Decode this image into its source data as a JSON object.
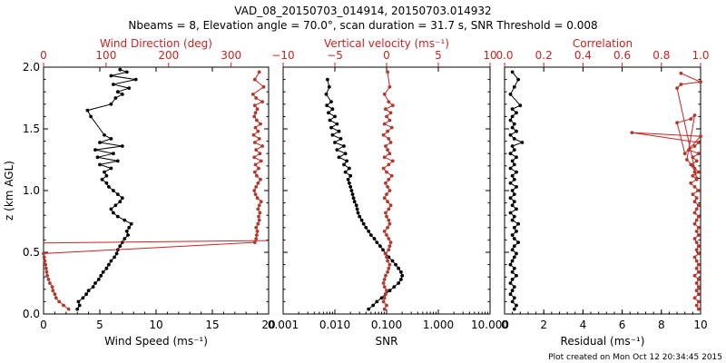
{
  "title_line1": "VAD_08_20150703_014914, 20150703.014932",
  "title_line2": "Nbeams = 8, Elevation angle = 70.0°, scan duration = 31.7 s, SNR Threshold = 0.008",
  "footer": "Plot created on Mon Oct 12 20:34:45 2015",
  "colors": {
    "black_series": "#000000",
    "red_series": "#b03a2e",
    "red_axis": "#cc2222"
  },
  "chart_data": [
    {
      "type": "scatter",
      "panel": "left",
      "ylabel": "z (km AGL)",
      "ylim": [
        0,
        2
      ],
      "yticks": [
        "0.0",
        "0.5",
        "1.0",
        "1.5",
        "2.0"
      ],
      "xlabel": "Wind Speed (ms⁻¹)",
      "xlim": [
        0,
        20
      ],
      "xticks": [
        "0",
        "5",
        "10",
        "15",
        "20"
      ],
      "top_label": "Wind Direction (deg)",
      "top_xlim": [
        0,
        360
      ],
      "top_ticks": [
        "0",
        "100",
        "200",
        "300"
      ],
      "top_tick_values": [
        0,
        100,
        200,
        300
      ],
      "series": [
        {
          "axis": "bottom",
          "color": "black",
          "connected": true,
          "x": [
            3.0,
            3.2,
            3.1,
            3.5,
            3.8,
            4.0,
            4.4,
            4.6,
            4.9,
            5.1,
            5.3,
            5.6,
            5.8,
            6.0,
            6.3,
            6.5,
            6.6,
            6.8,
            7.0,
            7.2,
            7.5,
            7.4,
            7.6,
            7.8,
            7.2,
            6.6,
            6.2,
            6.0,
            6.4,
            6.8,
            7.0,
            6.6,
            6.2,
            5.8,
            5.6,
            5.2,
            5.6,
            5.4,
            6.0,
            5.0,
            6.6,
            4.8,
            6.2,
            4.6,
            7.0,
            5.0,
            6.0,
            5.4,
            4.2,
            3.9,
            6.0,
            6.4,
            7.0,
            6.6,
            7.6,
            6.2,
            8.2,
            6.0,
            7.4,
            6.8
          ],
          "y": [
            0.04,
            0.07,
            0.1,
            0.13,
            0.16,
            0.19,
            0.22,
            0.25,
            0.28,
            0.31,
            0.34,
            0.37,
            0.4,
            0.43,
            0.46,
            0.49,
            0.52,
            0.55,
            0.58,
            0.61,
            0.64,
            0.67,
            0.7,
            0.73,
            0.76,
            0.79,
            0.82,
            0.85,
            0.88,
            0.91,
            0.94,
            0.97,
            1.0,
            1.03,
            1.06,
            1.09,
            1.12,
            1.15,
            1.18,
            1.21,
            1.24,
            1.27,
            1.3,
            1.33,
            1.36,
            1.39,
            1.42,
            1.45,
            1.6,
            1.65,
            1.7,
            1.75,
            1.78,
            1.8,
            1.83,
            1.86,
            1.9,
            1.93,
            1.96,
            1.98
          ]
        },
        {
          "axis": "top",
          "color": "red",
          "connected": true,
          "x": [
            40,
            32,
            25,
            20,
            18,
            15,
            14,
            10,
            8,
            6,
            5,
            4,
            3,
            2,
            1,
            0,
            338,
            340,
            341,
            342,
            340,
            343,
            345,
            344,
            346,
            343,
            345,
            348,
            342,
            339,
            337,
            340,
            343,
            347,
            341,
            338,
            344,
            339,
            348,
            337,
            346,
            340,
            350,
            338,
            345,
            336,
            343,
            339,
            347,
            341,
            337,
            339,
            342,
            338,
            350,
            340,
            335,
            352,
            338,
            345
          ],
          "y": [
            0.04,
            0.07,
            0.1,
            0.13,
            0.16,
            0.19,
            0.22,
            0.25,
            0.28,
            0.31,
            0.34,
            0.37,
            0.4,
            0.43,
            0.46,
            0.49,
            0.58,
            0.61,
            0.64,
            0.67,
            0.7,
            0.73,
            0.76,
            0.79,
            0.82,
            0.85,
            0.88,
            0.91,
            0.94,
            0.97,
            1.0,
            1.03,
            1.06,
            1.09,
            1.12,
            1.15,
            1.18,
            1.21,
            1.24,
            1.27,
            1.3,
            1.33,
            1.36,
            1.39,
            1.42,
            1.45,
            1.48,
            1.51,
            1.54,
            1.57,
            1.6,
            1.63,
            1.66,
            1.69,
            1.72,
            1.75,
            1.78,
            1.84,
            1.9,
            1.96
          ]
        }
      ],
      "wrap_line": {
        "from": [
          0,
          0.575
        ],
        "to": [
          360,
          0.595
        ]
      }
    },
    {
      "type": "scatter",
      "panel": "middle",
      "xlabel": "SNR",
      "xscale": "log",
      "xlim": [
        0.001,
        10
      ],
      "xticks": [
        "0.001",
        "0.010",
        "0.100",
        "1.000",
        "10.000"
      ],
      "xtick_values": [
        0.001,
        0.01,
        0.1,
        1,
        10
      ],
      "ylim": [
        0,
        2
      ],
      "top_label": "Vertical velocity (ms⁻¹)",
      "top_xlim": [
        -10,
        10
      ],
      "top_ticks": [
        "−10",
        "−5",
        "0",
        "5",
        "10"
      ],
      "top_tick_values": [
        -10,
        -5,
        0,
        5,
        10
      ],
      "series": [
        {
          "axis": "bottom",
          "color": "black",
          "connected": true,
          "x": [
            0.045,
            0.055,
            0.065,
            0.08,
            0.095,
            0.115,
            0.14,
            0.17,
            0.19,
            0.2,
            0.19,
            0.17,
            0.15,
            0.13,
            0.11,
            0.095,
            0.085,
            0.075,
            0.065,
            0.058,
            0.05,
            0.045,
            0.04,
            0.036,
            0.033,
            0.03,
            0.028,
            0.027,
            0.026,
            0.024,
            0.023,
            0.022,
            0.021,
            0.02,
            0.019,
            0.018,
            0.02,
            0.016,
            0.019,
            0.015,
            0.017,
            0.012,
            0.016,
            0.011,
            0.015,
            0.01,
            0.013,
            0.009,
            0.012,
            0.0085,
            0.011,
            0.008,
            0.01,
            0.0075,
            0.009,
            0.007,
            0.0085,
            0.0068,
            0.0078,
            0.0072
          ],
          "y": [
            0.04,
            0.07,
            0.1,
            0.13,
            0.16,
            0.19,
            0.22,
            0.25,
            0.28,
            0.31,
            0.34,
            0.37,
            0.4,
            0.43,
            0.46,
            0.49,
            0.52,
            0.55,
            0.58,
            0.61,
            0.64,
            0.67,
            0.7,
            0.73,
            0.76,
            0.79,
            0.82,
            0.85,
            0.88,
            0.91,
            0.94,
            0.97,
            1.0,
            1.03,
            1.06,
            1.09,
            1.12,
            1.15,
            1.18,
            1.21,
            1.24,
            1.27,
            1.3,
            1.33,
            1.36,
            1.39,
            1.42,
            1.45,
            1.48,
            1.51,
            1.54,
            1.57,
            1.6,
            1.63,
            1.66,
            1.69,
            1.72,
            1.78,
            1.84,
            1.9
          ]
        },
        {
          "axis": "top",
          "color": "red",
          "connected": true,
          "x": [
            -0.2,
            0.0,
            -0.3,
            -0.2,
            -0.1,
            0.0,
            -0.2,
            -0.3,
            -0.2,
            -0.1,
            0.1,
            0.2,
            0.3,
            0.1,
            0.0,
            -0.1,
            0.2,
            0.3,
            0.4,
            0.2,
            0.0,
            -0.2,
            0.1,
            0.3,
            0.2,
            0.0,
            -0.1,
            0.2,
            0.4,
            0.1,
            -0.2,
            0.0,
            0.3,
            0.1,
            -0.1,
            0.2,
            0.5,
            0.0,
            -0.3,
            0.2,
            0.6,
            -0.2,
            0.3,
            0.1,
            -0.1,
            0.4,
            0.2,
            -0.3,
            0.1,
            0.5,
            -0.2,
            0.3,
            0.0,
            0.4,
            -0.1,
            0.6,
            0.2,
            -0.2,
            0.3,
            0.1
          ],
          "y": [
            0.04,
            0.07,
            0.1,
            0.13,
            0.16,
            0.19,
            0.22,
            0.25,
            0.28,
            0.31,
            0.34,
            0.37,
            0.4,
            0.43,
            0.46,
            0.49,
            0.52,
            0.55,
            0.58,
            0.61,
            0.64,
            0.67,
            0.7,
            0.73,
            0.76,
            0.79,
            0.82,
            0.85,
            0.88,
            0.91,
            0.94,
            0.97,
            1.0,
            1.03,
            1.06,
            1.09,
            1.12,
            1.15,
            1.18,
            1.21,
            1.24,
            1.27,
            1.3,
            1.33,
            1.36,
            1.39,
            1.42,
            1.45,
            1.48,
            1.51,
            1.54,
            1.57,
            1.6,
            1.63,
            1.66,
            1.69,
            1.72,
            1.78,
            1.84,
            1.96
          ]
        }
      ]
    },
    {
      "type": "scatter",
      "panel": "right",
      "xlabel": "Residual (ms⁻¹)",
      "xlim": [
        0,
        10
      ],
      "xticks": [
        "0",
        "2",
        "4",
        "6",
        "8",
        "10"
      ],
      "ylim": [
        0,
        2
      ],
      "top_label": "Correlation",
      "top_xlim": [
        0,
        1
      ],
      "top_ticks": [
        "0.0",
        "0.2",
        "0.4",
        "0.6",
        "0.8",
        "1.0"
      ],
      "top_tick_values": [
        0,
        0.2,
        0.4,
        0.6,
        0.8,
        1.0
      ],
      "series": [
        {
          "axis": "bottom",
          "color": "black",
          "connected": true,
          "x": [
            0.5,
            0.6,
            0.4,
            0.5,
            0.3,
            0.4,
            0.5,
            0.3,
            0.4,
            0.6,
            0.4,
            0.5,
            0.3,
            0.4,
            0.5,
            0.6,
            0.4,
            0.5,
            0.7,
            0.5,
            0.4,
            0.6,
            0.5,
            0.7,
            0.4,
            0.5,
            0.3,
            0.6,
            0.4,
            0.5,
            0.3,
            0.5,
            0.4,
            0.6,
            0.3,
            0.5,
            0.4,
            0.6,
            0.3,
            0.5,
            0.4,
            0.6,
            0.3,
            0.5,
            0.4,
            0.9,
            0.5,
            0.3,
            0.6,
            0.4,
            0.5,
            0.3,
            0.4,
            0.6,
            0.4,
            0.8,
            0.3,
            0.5,
            0.7,
            0.4
          ],
          "y": [
            0.04,
            0.07,
            0.1,
            0.13,
            0.16,
            0.19,
            0.22,
            0.25,
            0.28,
            0.31,
            0.34,
            0.37,
            0.4,
            0.43,
            0.46,
            0.49,
            0.52,
            0.55,
            0.58,
            0.61,
            0.64,
            0.67,
            0.7,
            0.73,
            0.76,
            0.79,
            0.82,
            0.85,
            0.88,
            0.91,
            0.94,
            0.97,
            1.0,
            1.03,
            1.06,
            1.09,
            1.12,
            1.15,
            1.18,
            1.21,
            1.24,
            1.27,
            1.3,
            1.33,
            1.36,
            1.39,
            1.42,
            1.45,
            1.48,
            1.51,
            1.54,
            1.57,
            1.6,
            1.63,
            1.66,
            1.69,
            1.78,
            1.84,
            1.9,
            1.96
          ]
        },
        {
          "axis": "top",
          "color": "red",
          "connected": true,
          "x": [
            0.99,
            0.98,
            0.99,
            0.97,
            0.99,
            0.98,
            0.99,
            0.98,
            0.99,
            0.97,
            0.99,
            0.98,
            0.99,
            0.98,
            0.97,
            0.99,
            0.98,
            0.99,
            0.98,
            0.97,
            0.99,
            0.98,
            0.99,
            0.97,
            0.98,
            0.99,
            0.97,
            0.98,
            0.99,
            0.97,
            0.98,
            0.96,
            0.99,
            0.97,
            0.95,
            0.98,
            0.96,
            0.99,
            0.97,
            0.95,
            0.98,
            0.96,
            0.99,
            0.94,
            0.97,
            0.99,
            0.65,
            1.0,
            0.92,
            0.88,
            0.95,
            0.97,
            0.93,
            0.96,
            0.97,
            0.98,
            0.88,
            0.9,
            1.0,
            0.9
          ],
          "y": [
            0.04,
            0.07,
            0.1,
            0.13,
            0.16,
            0.19,
            0.22,
            0.25,
            0.28,
            0.31,
            0.34,
            0.37,
            0.4,
            0.43,
            0.46,
            0.49,
            0.52,
            0.55,
            0.58,
            0.61,
            0.64,
            0.67,
            0.7,
            0.73,
            0.76,
            0.79,
            0.82,
            0.85,
            0.88,
            0.91,
            0.94,
            0.97,
            1.0,
            1.03,
            1.06,
            1.09,
            1.12,
            1.15,
            1.18,
            1.21,
            1.24,
            1.27,
            1.3,
            1.33,
            1.36,
            1.39,
            1.47,
            1.44,
            1.3,
            1.55,
            1.58,
            1.61,
            1.25,
            1.2,
            1.15,
            1.1,
            1.83,
            1.86,
            1.88,
            1.95
          ]
        }
      ]
    }
  ]
}
